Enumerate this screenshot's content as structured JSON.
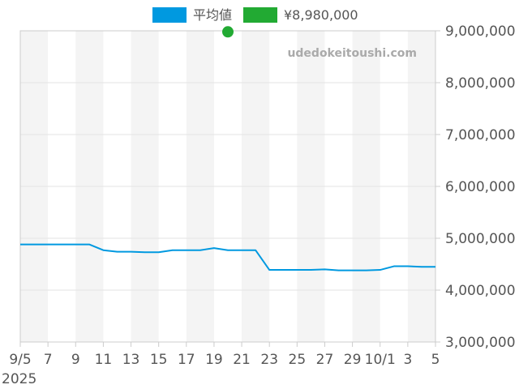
{
  "chart_data": {
    "type": "line",
    "watermark": "udedokeitoushi.com",
    "x": [
      "2025-09-05",
      "2025-09-06",
      "2025-09-07",
      "2025-09-08",
      "2025-09-09",
      "2025-09-10",
      "2025-09-11",
      "2025-09-12",
      "2025-09-13",
      "2025-09-14",
      "2025-09-15",
      "2025-09-16",
      "2025-09-17",
      "2025-09-18",
      "2025-09-19",
      "2025-09-20",
      "2025-09-21",
      "2025-09-22",
      "2025-09-23",
      "2025-09-24",
      "2025-09-25",
      "2025-09-26",
      "2025-09-27",
      "2025-09-28",
      "2025-09-29",
      "2025-09-30",
      "2025-10-01",
      "2025-10-02",
      "2025-10-03",
      "2025-10-04",
      "2025-10-05"
    ],
    "x_tick_labels": [
      "9/5",
      "7",
      "9",
      "11",
      "13",
      "15",
      "17",
      "19",
      "21",
      "23",
      "25",
      "27",
      "29",
      "10/1",
      "3",
      "5"
    ],
    "x_year_label": "2025",
    "ylim": [
      3000000,
      9000000
    ],
    "y_tick_labels": [
      "9,000,000",
      "8,000,000",
      "7,000,000",
      "6,000,000",
      "5,000,000",
      "4,000,000",
      "3,000,000"
    ],
    "grid": true,
    "y_axis_position": "right",
    "legend_position": "top-center",
    "series": [
      {
        "name": "平均値",
        "color": "#0099e0",
        "kind": "line",
        "values": [
          4880000,
          4880000,
          4880000,
          4880000,
          4880000,
          4880000,
          4770000,
          4740000,
          4740000,
          4730000,
          4730000,
          4770000,
          4770000,
          4770000,
          4810000,
          4770000,
          4770000,
          4770000,
          4390000,
          4390000,
          4390000,
          4390000,
          4400000,
          4380000,
          4380000,
          4380000,
          4390000,
          4460000,
          4460000,
          4450000,
          4450000
        ]
      },
      {
        "name": "¥8,980,000",
        "color": "#22aa33",
        "kind": "point",
        "x": "2025-09-20",
        "value": 8980000
      }
    ]
  }
}
